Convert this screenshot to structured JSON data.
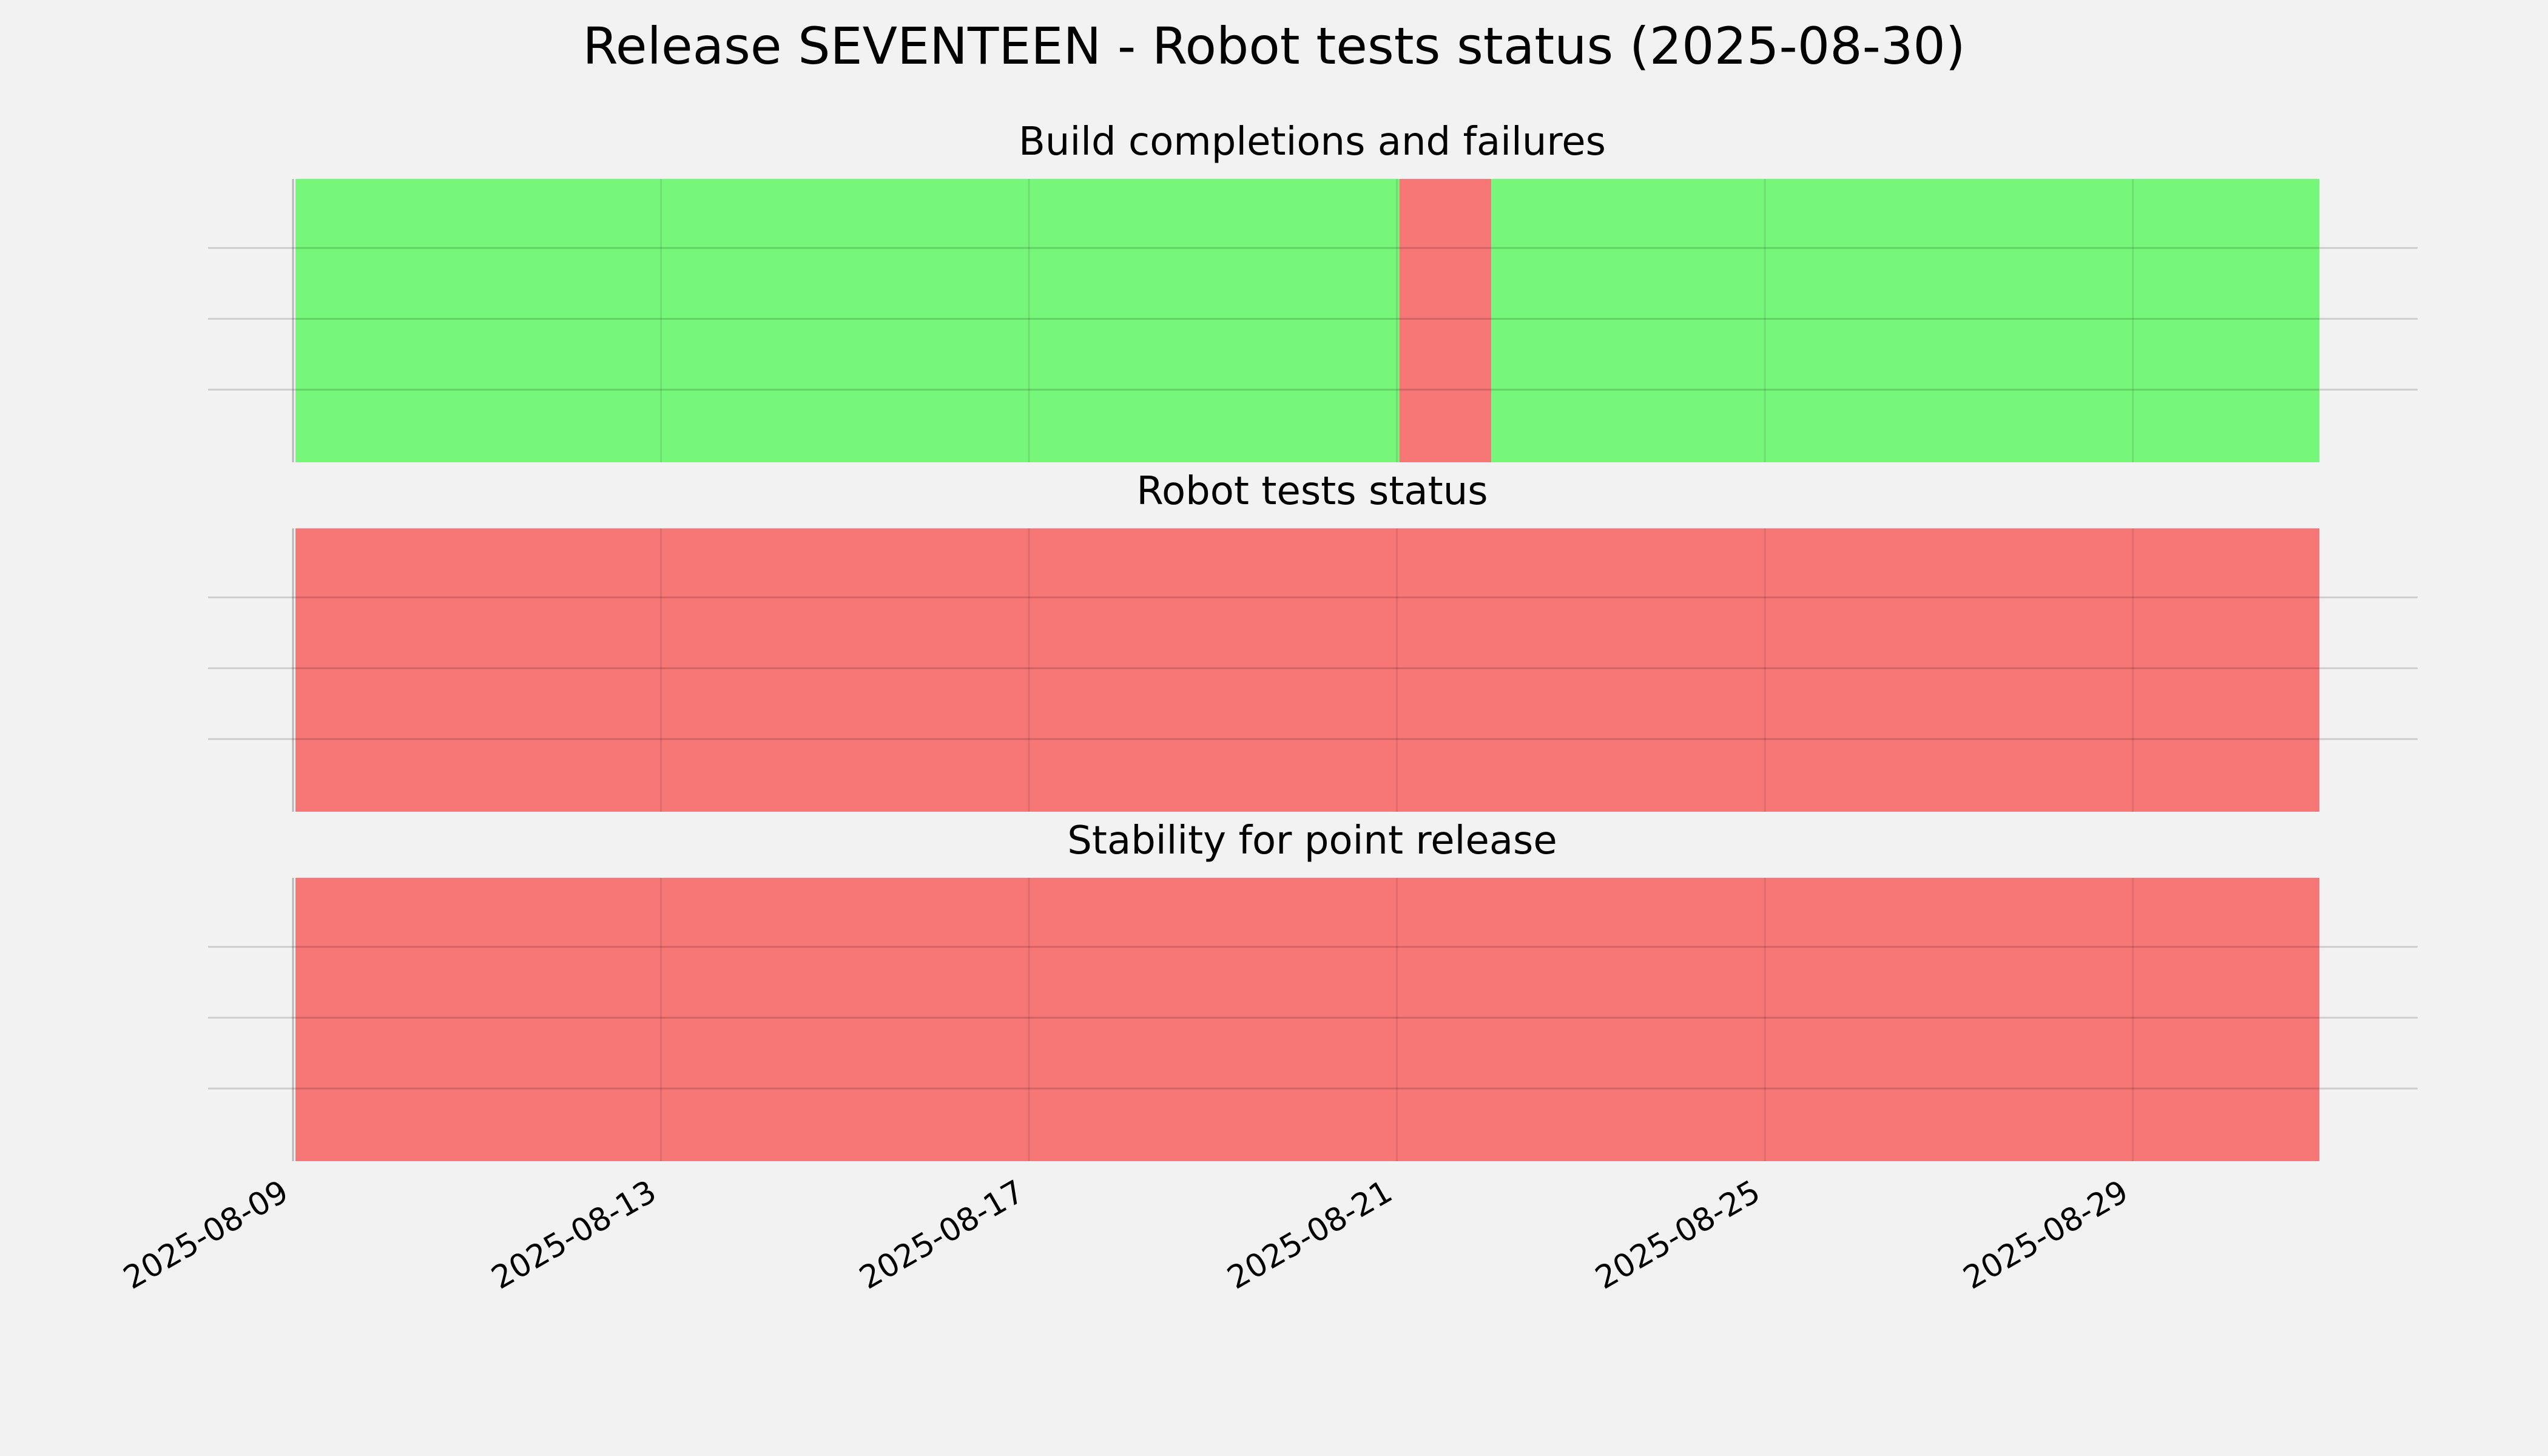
{
  "page": {
    "background": "#f2f2f2"
  },
  "chart_data": {
    "type": "timeline",
    "title": "Release SEVENTEEN - Robot tests status (2025-08-30)",
    "x_axis": {
      "type": "date",
      "range": [
        "2025-08-09",
        "2025-08-31"
      ],
      "ticks": [
        "2025-08-09",
        "2025-08-13",
        "2025-08-17",
        "2025-08-21",
        "2025-08-25",
        "2025-08-29"
      ],
      "grid": true
    },
    "colors": {
      "pass": "#77f77a",
      "fail": "#f77776",
      "grid": "#c8c8c8"
    },
    "panels": [
      {
        "title": "Build completions and failures",
        "segments": [
          {
            "start": "2025-08-09",
            "end": "2025-08-21",
            "status": "pass"
          },
          {
            "start": "2025-08-21",
            "end": "2025-08-22",
            "status": "fail"
          },
          {
            "start": "2025-08-22",
            "end": "2025-08-31",
            "status": "pass"
          }
        ]
      },
      {
        "title": "Robot tests status",
        "segments": [
          {
            "start": "2025-08-09",
            "end": "2025-08-31",
            "status": "fail"
          }
        ]
      },
      {
        "title": "Stability for point release",
        "segments": [
          {
            "start": "2025-08-09",
            "end": "2025-08-31",
            "status": "fail"
          }
        ]
      }
    ]
  }
}
